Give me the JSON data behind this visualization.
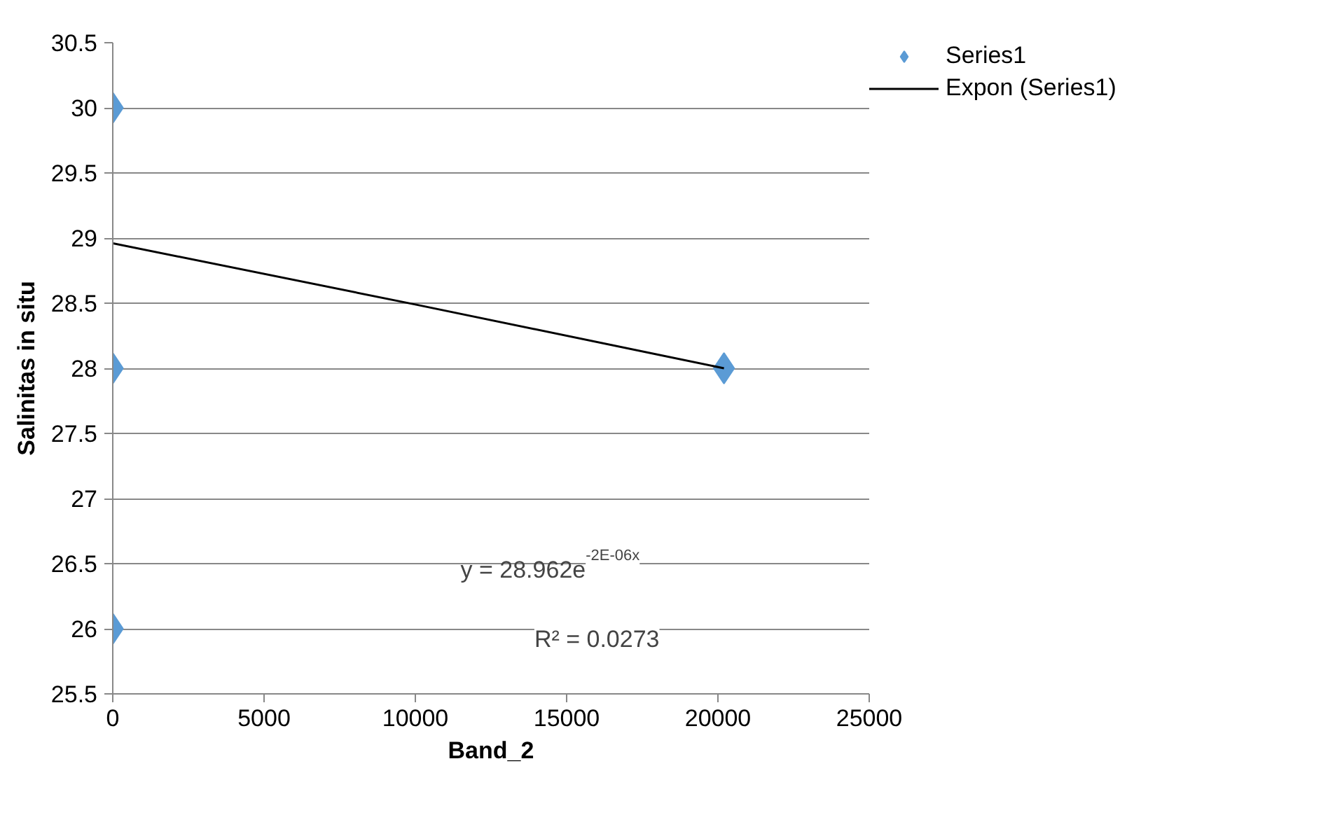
{
  "chart_data": {
    "type": "scatter",
    "xlabel": "Band_2",
    "ylabel": "Salinitas in situ",
    "series": [
      {
        "name": "Series1",
        "color": "#5b9bd5",
        "marker": "diamond",
        "x": [
          0,
          0,
          0,
          20200
        ],
        "values": [
          30,
          28,
          26,
          28
        ]
      },
      {
        "name": "Expon (Series1)",
        "type": "line",
        "color": "#000000",
        "line_style": "solid",
        "x": [
          0,
          10000,
          20200
        ],
        "values": [
          28.96,
          28.49,
          28.0
        ]
      }
    ],
    "annotations": [
      "y = 28.962e$^{-2E-06x}$",
      "R² = 0.0273"
    ],
    "xlim": [
      0,
      25000
    ],
    "xticks": [
      0,
      5000,
      10000,
      15000,
      20000,
      25000
    ],
    "ylim": [
      25.5,
      30.5
    ],
    "yticks": [
      25.5,
      26,
      26.5,
      27,
      27.5,
      28,
      28.5,
      29,
      29.5,
      30,
      30.5
    ],
    "grid": "y",
    "legend": "right"
  }
}
